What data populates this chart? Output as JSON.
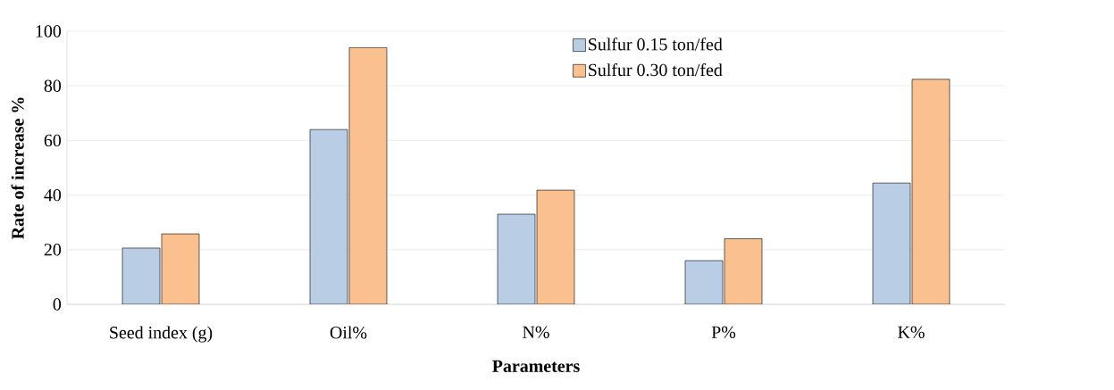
{
  "chart_data": {
    "type": "bar",
    "xlabel": "Parameters",
    "ylabel": "Rate of increase %",
    "categories": [
      "Seed index (g)",
      "Oil%",
      "N%",
      "P%",
      "K%"
    ],
    "series": [
      {
        "name": "Sulfur 0.15 ton/fed",
        "color": "#b9cde5",
        "values": [
          20.6,
          64,
          33,
          16,
          44.4
        ]
      },
      {
        "name": "Sulfur 0.30 ton/fed",
        "color": "#fac090",
        "values": [
          25.8,
          94,
          41.8,
          24,
          82.4
        ]
      }
    ],
    "ylim": [
      0,
      100
    ],
    "yticks": [
      0,
      20,
      40,
      60,
      80,
      100
    ],
    "grid": "y",
    "legend": "top"
  }
}
